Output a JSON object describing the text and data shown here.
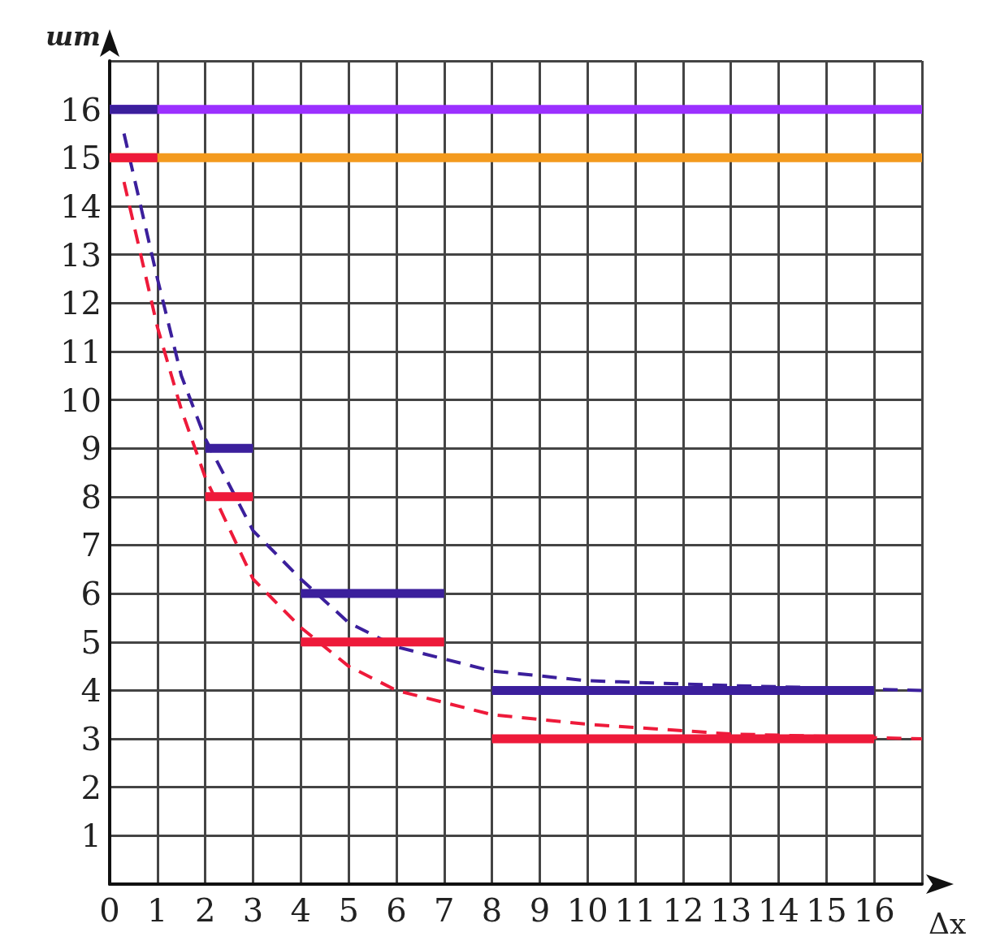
{
  "chart_data": {
    "type": "line",
    "xlabel": "Δx",
    "ylabel": "шт",
    "xlim": [
      0,
      17
    ],
    "ylim": [
      0,
      17
    ],
    "xticks": [
      0,
      1,
      2,
      3,
      4,
      5,
      6,
      7,
      8,
      9,
      10,
      11,
      12,
      13,
      14,
      15,
      16,
      {
        "value": 17,
        "label": null
      }
    ],
    "yticks": [
      {
        "value": 0,
        "label": null
      },
      1,
      2,
      3,
      4,
      5,
      6,
      7,
      8,
      9,
      10,
      11,
      12,
      13,
      14,
      15,
      16,
      {
        "value": 17,
        "label": null
      }
    ],
    "grid": true,
    "marker": "none",
    "series": [
      {
        "color": "#9b30ff",
        "line_style": "solid",
        "x": [
          0,
          17
        ],
        "values": [
          16,
          16
        ]
      },
      {
        "color": "#f39a1e",
        "line_style": "solid",
        "x": [
          0,
          17
        ],
        "values": [
          15,
          15
        ]
      },
      {
        "color": "#3b1f9c",
        "line_style": "dashed",
        "x": [
          0.3,
          1,
          1.5,
          2,
          3,
          4,
          5,
          6,
          8,
          10,
          13,
          17
        ],
        "values": [
          15.5,
          12.5,
          10.5,
          9.2,
          7.3,
          6.3,
          5.4,
          4.9,
          4.4,
          4.2,
          4.1,
          4
        ]
      },
      {
        "color": "#ee1a3a",
        "line_style": "dashed",
        "x": [
          0.3,
          1,
          1.5,
          2,
          3,
          4,
          5,
          6,
          8,
          10,
          13,
          17
        ],
        "values": [
          14.5,
          11.5,
          9.8,
          8.4,
          6.3,
          5.3,
          4.5,
          4,
          3.5,
          3.3,
          3.1,
          3
        ]
      },
      {
        "color": "#3b1f9c",
        "line_style": "solid",
        "x": [
          0,
          1,
          1.5,
          2,
          3,
          3.5,
          4,
          7,
          7.5,
          8,
          16
        ],
        "values": [
          16,
          16,
          null,
          9,
          9,
          null,
          6,
          6,
          null,
          4,
          4
        ]
      },
      {
        "color": "#ee1a3a",
        "line_style": "solid",
        "x": [
          0,
          1,
          1.5,
          2,
          3,
          3.5,
          4,
          7,
          7.5,
          8,
          16
        ],
        "values": [
          15,
          15,
          null,
          8,
          8,
          null,
          5,
          5,
          null,
          3,
          3
        ]
      }
    ]
  }
}
